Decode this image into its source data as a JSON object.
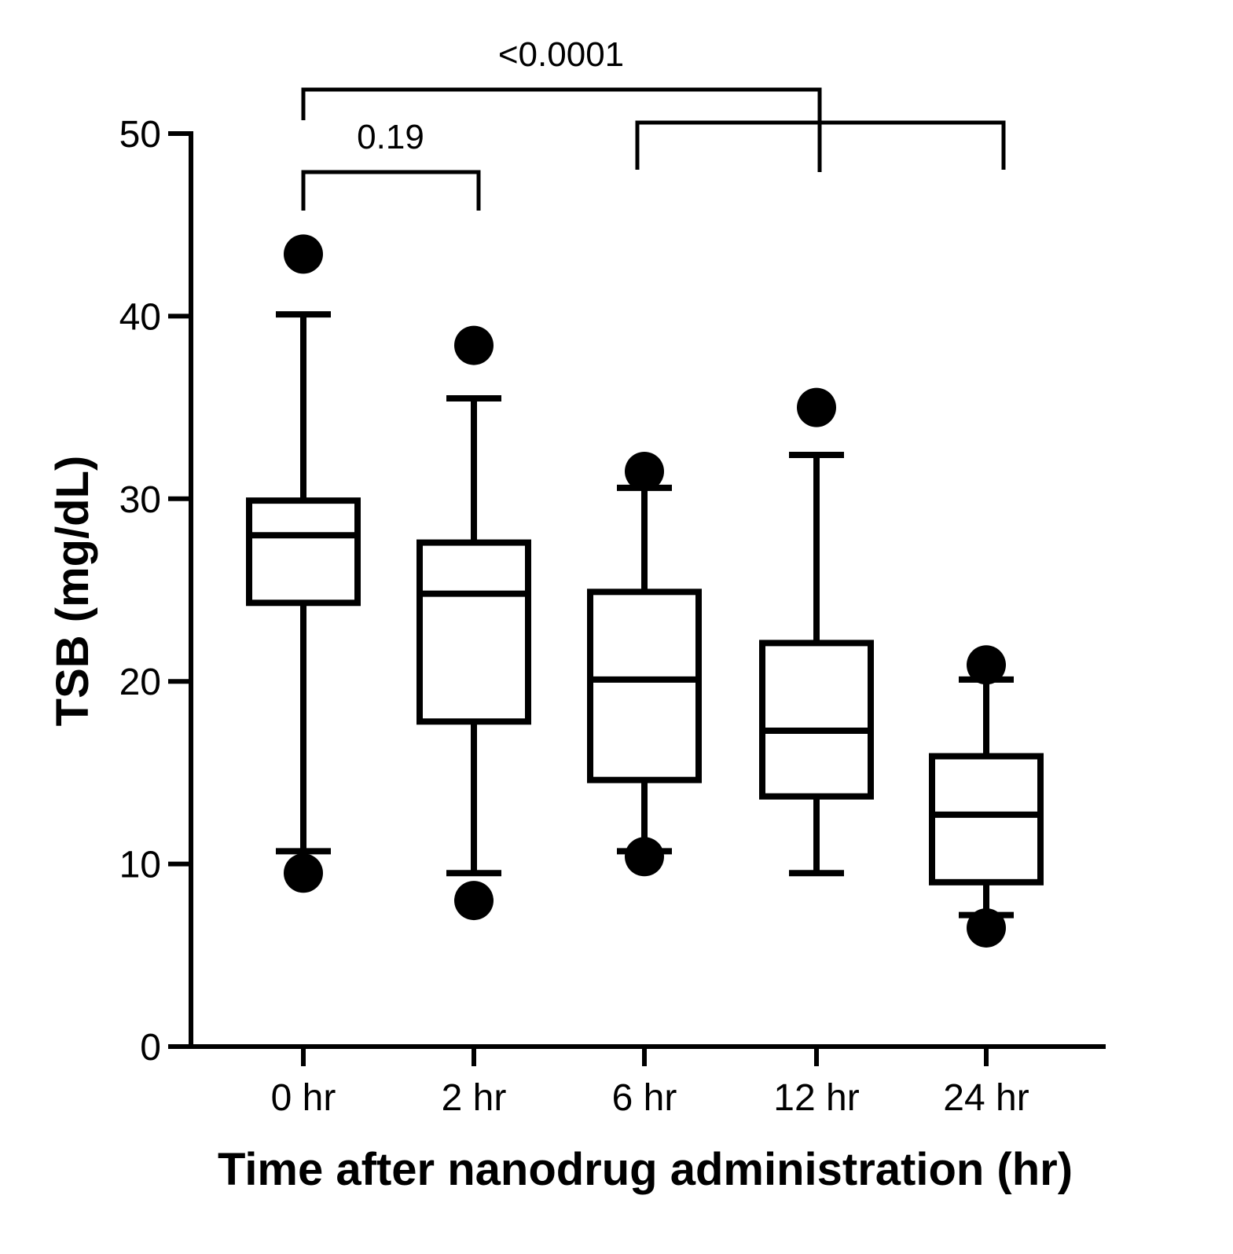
{
  "chart_data": {
    "type": "box",
    "xlabel": "Time after nanodrug administration (hr)",
    "ylabel": "TSB (mg/dL)",
    "ylim": [
      0,
      50
    ],
    "yticks": [
      0,
      10,
      20,
      30,
      40,
      50
    ],
    "grid": false,
    "categories": [
      "0 hr",
      "2 hr",
      "6 hr",
      "12 hr",
      "24 hr"
    ],
    "boxes": [
      {
        "category": "0 hr",
        "whisker_low": 10.7,
        "q1": 24.3,
        "median": 28.0,
        "q3": 29.9,
        "whisker_high": 40.1,
        "outliers": [
          43.4,
          9.5
        ]
      },
      {
        "category": "2 hr",
        "whisker_low": 9.5,
        "q1": 17.8,
        "median": 24.8,
        "q3": 27.6,
        "whisker_high": 35.5,
        "outliers": [
          38.4,
          8.0
        ]
      },
      {
        "category": "6 hr",
        "whisker_low": 10.7,
        "q1": 14.6,
        "median": 20.1,
        "q3": 24.9,
        "whisker_high": 30.6,
        "outliers": [
          31.5,
          10.4
        ]
      },
      {
        "category": "12 hr",
        "whisker_low": 9.5,
        "q1": 13.7,
        "median": 17.3,
        "q3": 22.1,
        "whisker_high": 32.4,
        "outliers": [
          35.0
        ]
      },
      {
        "category": "24 hr",
        "whisker_low": 7.2,
        "q1": 9.0,
        "median": 12.7,
        "q3": 15.9,
        "whisker_high": 20.1,
        "outliers": [
          20.9,
          6.5
        ]
      }
    ],
    "annotations": [
      {
        "text": "0.19",
        "groups": [
          "0 hr",
          "2 hr"
        ]
      },
      {
        "text": "<0.0001",
        "groups": [
          "0 hr",
          "6 hr",
          "12 hr",
          "24 hr"
        ]
      }
    ]
  }
}
